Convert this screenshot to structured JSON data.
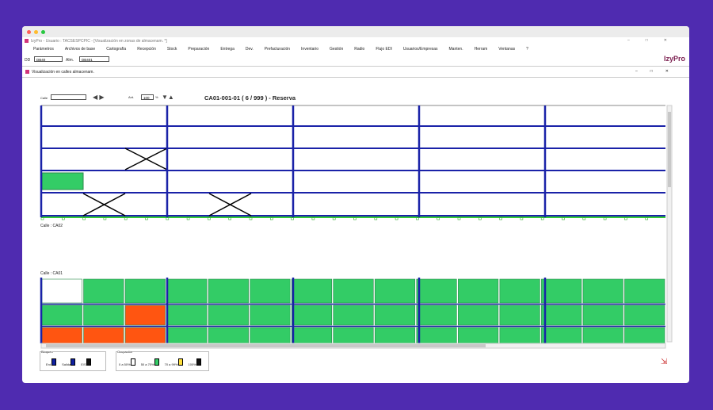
{
  "app_title": "IzyPro - Usuario : TACSESPCPIC - [Visualización en zonas de almacenam. *]",
  "menu": [
    "Parámetros",
    "Archivos de base",
    "Cartografía",
    "Recepción",
    "Stock",
    "Preparación",
    "Entrega",
    "Dev.",
    "Prefacturación",
    "Inventario",
    "Gestión",
    "Radio",
    "Flujo EDI",
    "Usuarios/Empresas",
    "Manten.",
    "Herram",
    "Ventanas",
    "?"
  ],
  "toolbar": {
    "dd_label": "DD",
    "dd_value": "DB40",
    "alm_label": "Alm.",
    "alm_value": "DB401",
    "logo": "IzyPro"
  },
  "window_title": "Visualización en calles almacenam.",
  "controls": {
    "calle_label": "Calle",
    "ant_label": "Ant.",
    "zoom": "100",
    "zoom_unit": "%"
  },
  "heading": "CA01-001-01 ( 6 / 999 ) - Reserva",
  "sections": [
    "Calle : CA02",
    "Calle : CA01"
  ],
  "legend": {
    "bloqueo_title": "Bloqueo",
    "bloqueo": [
      "Ent.",
      "Salida",
      "E/S"
    ],
    "ocupacion_title": "Ocupación",
    "ocupacion": [
      "0 a 50%",
      "50 a 70%",
      "70 a 99%",
      "100%"
    ]
  }
}
